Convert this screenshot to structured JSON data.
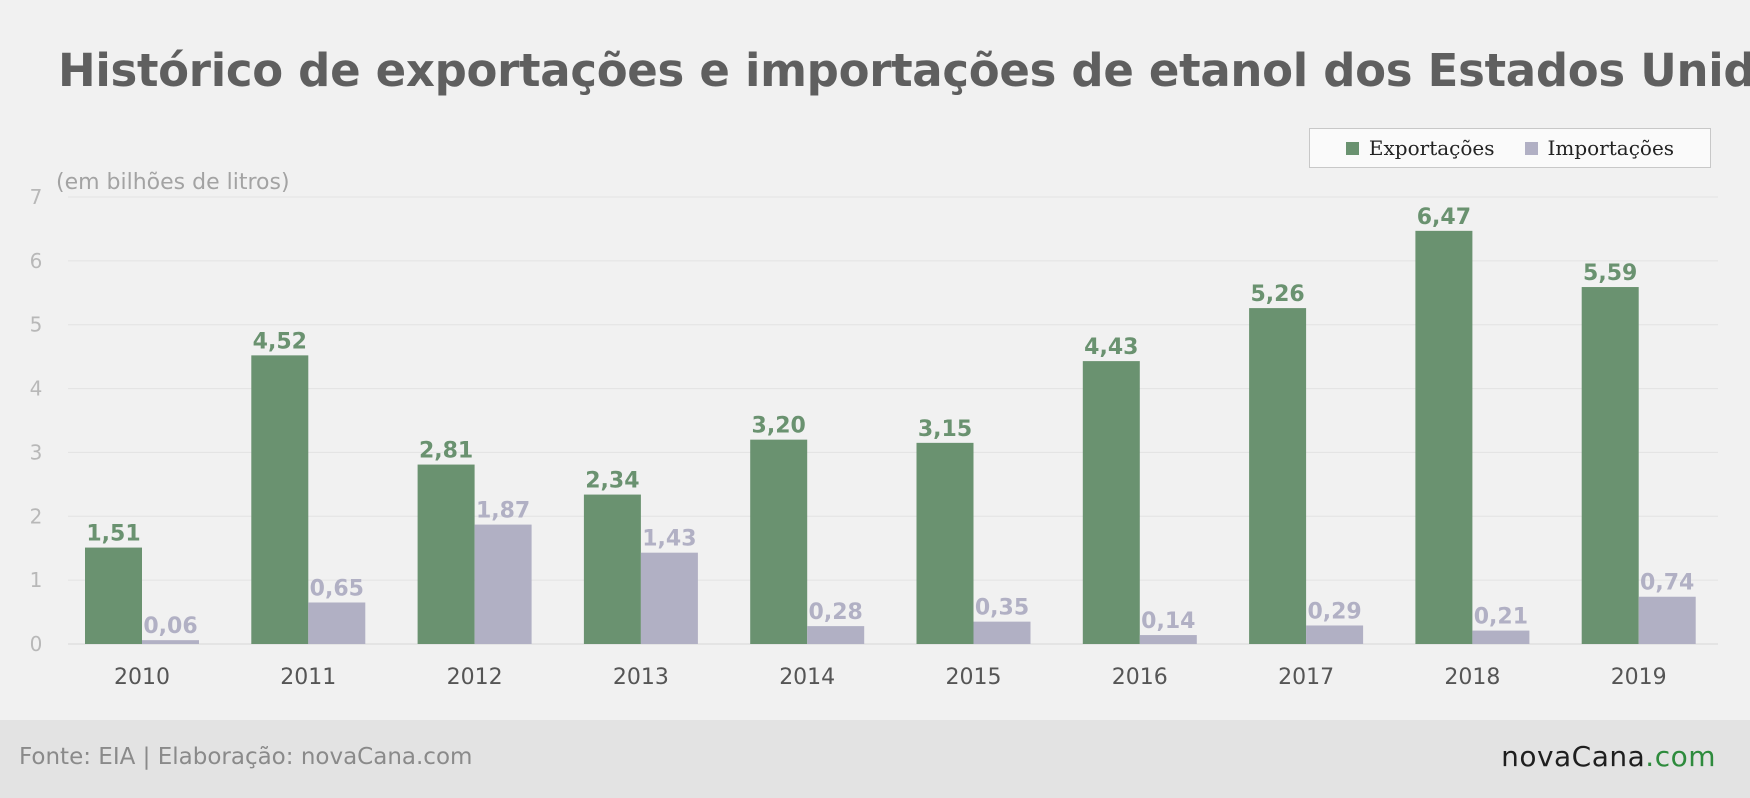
{
  "chart_data": {
    "type": "bar",
    "title": "Histórico de exportações e importações de etanol dos Estados Unidos",
    "subtitle": "(em bilhões de litros)",
    "categories": [
      "2010",
      "2011",
      "2012",
      "2013",
      "2014",
      "2015",
      "2016",
      "2017",
      "2018",
      "2019"
    ],
    "series": [
      {
        "name": "Exportações",
        "color": "#6a9270",
        "values": [
          1.51,
          4.52,
          2.81,
          2.34,
          3.2,
          3.15,
          4.43,
          5.26,
          6.47,
          5.59
        ],
        "labels": [
          "1,51",
          "4,52",
          "2,81",
          "2,34",
          "3,20",
          "3,15",
          "4,43",
          "5,26",
          "6,47",
          "5,59"
        ]
      },
      {
        "name": "Importações",
        "color": "#b1b0c4",
        "values": [
          0.06,
          0.65,
          1.87,
          1.43,
          0.28,
          0.35,
          0.14,
          0.29,
          0.21,
          0.74
        ],
        "labels": [
          "0,06",
          "0,65",
          "1,87",
          "1,43",
          "0,28",
          "0,35",
          "0,14",
          "0,29",
          "0,21",
          "0,74"
        ]
      }
    ],
    "ylim": [
      0,
      7
    ],
    "yticks": [
      "0",
      "1",
      "2",
      "3",
      "4",
      "5",
      "6",
      "7"
    ],
    "grid": true,
    "legend_position": "top-right"
  },
  "footer": {
    "source": "Fonte: EIA | Elaboração: novaCana.com",
    "brand_name": "novaCana",
    "brand_tld": ".com"
  }
}
